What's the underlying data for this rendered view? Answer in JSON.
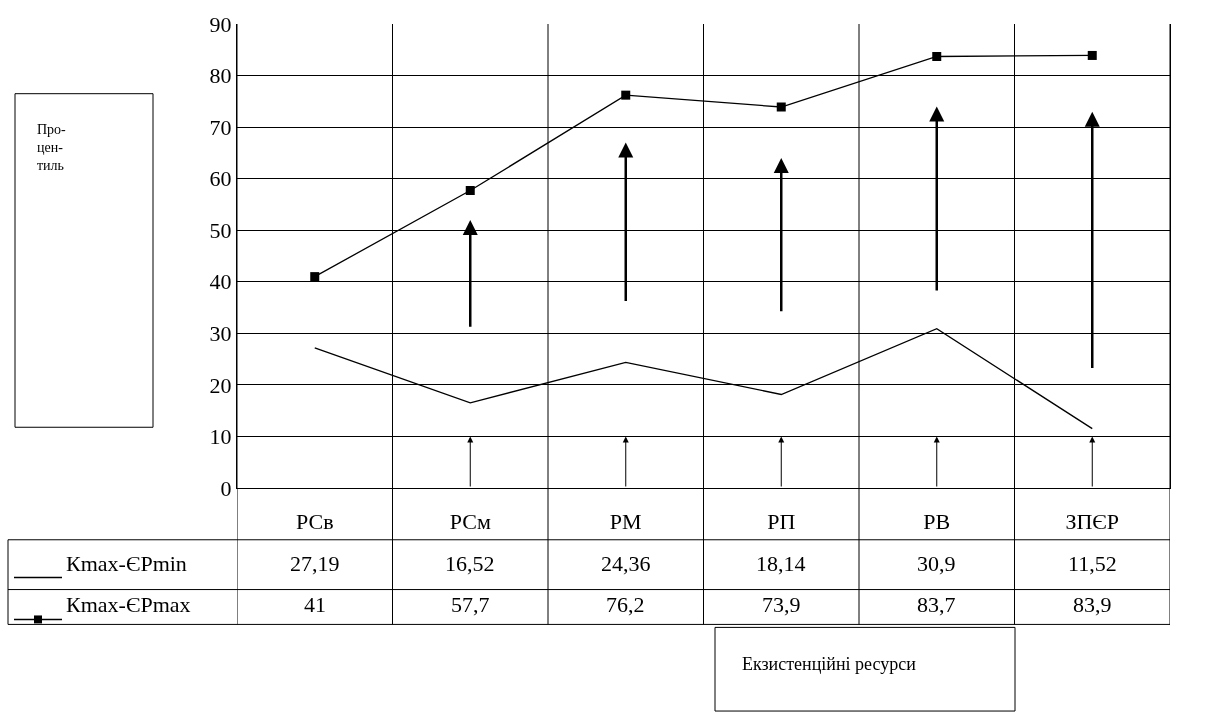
{
  "chart_data": {
    "type": "line",
    "annotations": [
      "Про-\nцен-\nтиль",
      "Екзистенційні ресурси"
    ],
    "legend": "bottom left",
    "categories": [
      "РСв",
      "РСм",
      "РМ",
      "РП",
      "РВ",
      "ЗПЄР"
    ],
    "series": [
      {
        "name": "Кmax-ЄРmin",
        "color": "#000000",
        "marker": "none",
        "values": [
          27.19,
          16.52,
          24.36,
          18.14,
          30.9,
          11.52
        ],
        "value_labels": [
          "27,19",
          "16,52",
          "24,36",
          "18,14",
          "30,9",
          "11,52"
        ]
      },
      {
        "name": "Кmax-ЄРmax",
        "color": "#000000",
        "marker": "square",
        "values": [
          41,
          57.7,
          76.2,
          73.9,
          83.7,
          83.9
        ],
        "value_labels": [
          "41",
          "57,7",
          "76,2",
          "73,9",
          "83,7",
          "83,9"
        ]
      }
    ],
    "ylim": [
      0,
      90
    ],
    "yticks": [
      0,
      10,
      20,
      30,
      40,
      50,
      60,
      70,
      80,
      90
    ],
    "grid": true,
    "data_labels": true
  }
}
